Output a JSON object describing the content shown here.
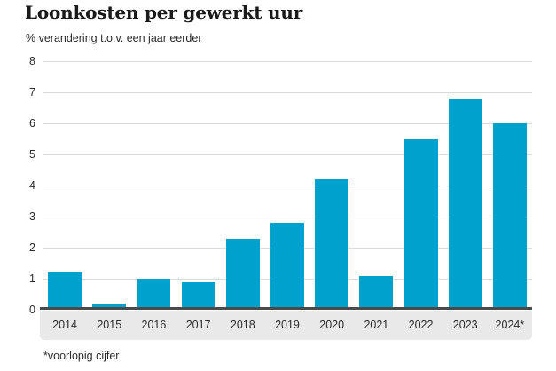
{
  "chart_data": {
    "type": "bar",
    "title": "Loonkosten per gewerkt uur",
    "subtitle": "% verandering t.o.v. een jaar eerder",
    "footnote": "*voorlopig cijfer",
    "categories": [
      "2014",
      "2015",
      "2016",
      "2017",
      "2018",
      "2019",
      "2020",
      "2021",
      "2022",
      "2023",
      "2024*"
    ],
    "values": [
      1.2,
      0.2,
      1.0,
      0.9,
      2.3,
      2.8,
      4.2,
      1.1,
      5.5,
      6.8,
      6.0
    ],
    "xlabel": "",
    "ylabel": "",
    "ylim": [
      0,
      8
    ],
    "yticks": [
      0,
      1,
      2,
      3,
      4,
      5,
      6,
      7,
      8
    ],
    "grid": "horizontal",
    "legend": "none",
    "colors": {
      "bar": "#00a1cd",
      "grid": "#dbdbdb",
      "baseline": "#4a4a4a",
      "axis_band": "#e9e9e9",
      "title_text": "#1a1a1a",
      "label_text": "#2b2b2b"
    }
  }
}
